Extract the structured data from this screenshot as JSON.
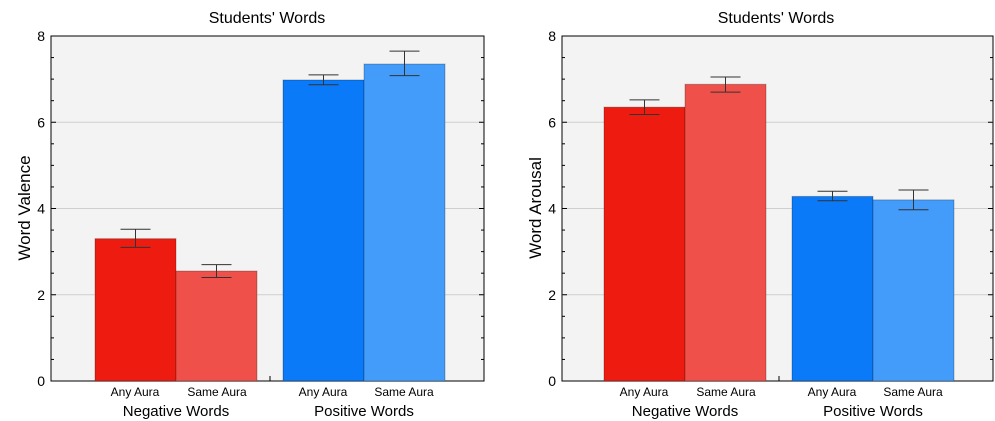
{
  "chart_data": [
    {
      "type": "bar",
      "title": "Students' Words",
      "xlabel": "",
      "ylabel": "Word Valence",
      "ylim": [
        0,
        8
      ],
      "yticks": [
        0,
        2,
        4,
        6,
        8
      ],
      "grid": true,
      "groups": [
        "Negative Words",
        "Positive Words"
      ],
      "categories": [
        "Any Aura",
        "Same Aura",
        "Any Aura",
        "Same Aura"
      ],
      "values": [
        3.3,
        2.55,
        6.98,
        7.35
      ],
      "error_low": [
        3.1,
        2.4,
        6.87,
        7.08
      ],
      "error_high": [
        3.52,
        2.7,
        7.1,
        7.65
      ],
      "colors": [
        "#ee1c10",
        "#f0504a",
        "#0a7af8",
        "#439bfa"
      ]
    },
    {
      "type": "bar",
      "title": "Students' Words",
      "xlabel": "",
      "ylabel": "Word Arousal",
      "ylim": [
        0,
        8
      ],
      "yticks": [
        0,
        2,
        4,
        6,
        8
      ],
      "grid": true,
      "groups": [
        "Negative Words",
        "Positive Words"
      ],
      "categories": [
        "Any Aura",
        "Same Aura",
        "Any Aura",
        "Same Aura"
      ],
      "values": [
        6.35,
        6.88,
        4.28,
        4.2
      ],
      "error_low": [
        6.18,
        6.7,
        4.18,
        3.97
      ],
      "error_high": [
        6.52,
        7.05,
        4.4,
        4.43
      ],
      "colors": [
        "#ee1c10",
        "#f0504a",
        "#0a7af8",
        "#439bfa"
      ]
    }
  ]
}
